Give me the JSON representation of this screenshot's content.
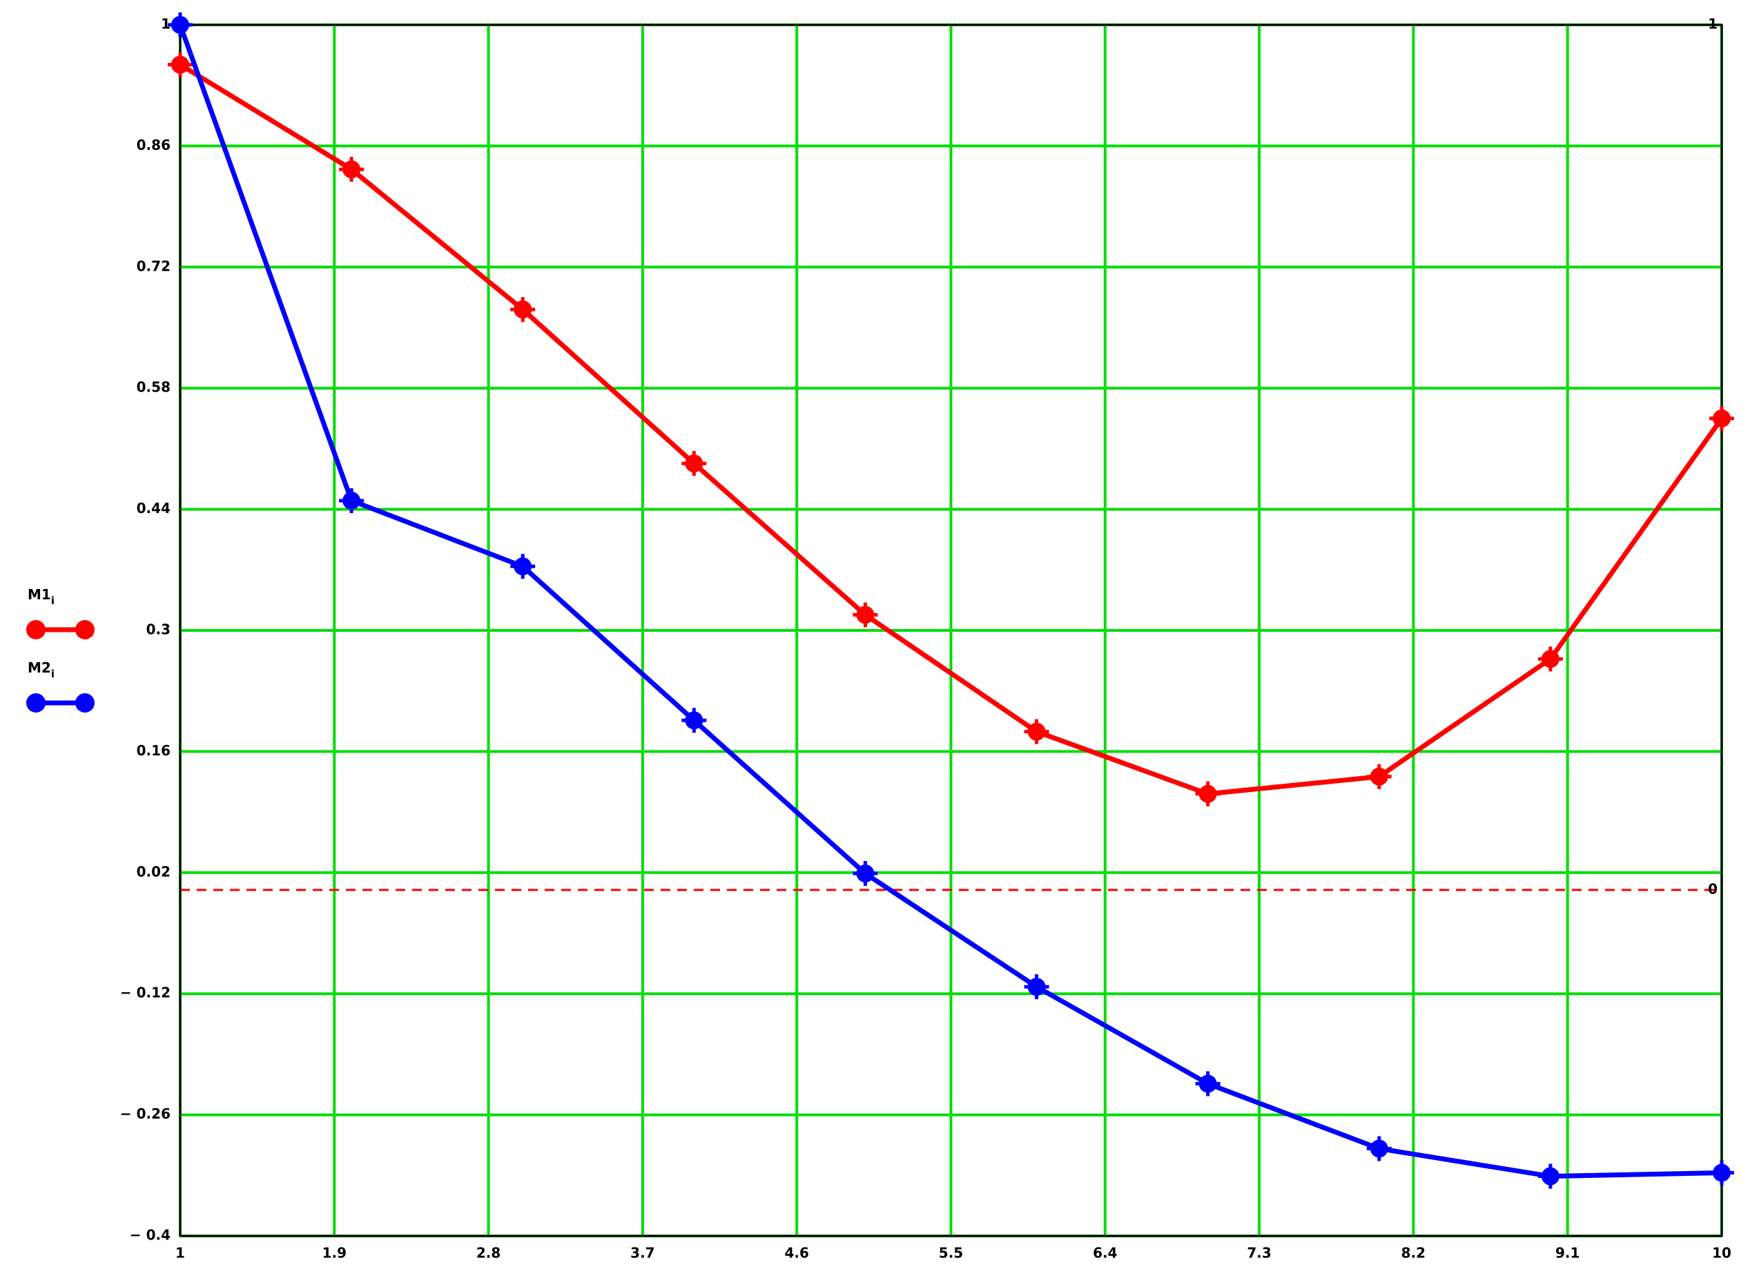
{
  "chart_data": {
    "type": "line",
    "x": [
      1,
      2,
      3,
      4,
      5,
      6,
      7,
      8,
      9,
      10
    ],
    "series": [
      {
        "name": "M1",
        "subscript": "i",
        "color": "#ff0000",
        "values": [
          0.954,
          0.833,
          0.671,
          0.493,
          0.318,
          0.183,
          0.111,
          0.131,
          0.267,
          0.545
        ]
      },
      {
        "name": "M2",
        "subscript": "i",
        "color": "#0000ff",
        "values": [
          1,
          0.45,
          0.374,
          0.196,
          0.019,
          -0.112,
          -0.224,
          -0.299,
          -0.331,
          -0.327
        ]
      }
    ],
    "xlim": [
      1,
      10
    ],
    "xticks": [
      1,
      1.9,
      2.8,
      3.7,
      4.6,
      5.5,
      6.4,
      7.3,
      8.2,
      9.1,
      10
    ],
    "ylim": [
      -0.4,
      1
    ],
    "yticks": [
      {
        "value": -0.4,
        "label": "− 0.4"
      },
      {
        "value": -0.26,
        "label": "− 0.26"
      },
      {
        "value": -0.12,
        "label": "− 0.12"
      },
      0.02,
      0.16,
      0.3,
      0.44,
      0.58,
      0.72,
      0.86,
      1
    ],
    "grid": true,
    "grid_color": "#00dd00",
    "markers": [
      1,
      0
    ],
    "marker_color": "#ff0000"
  }
}
